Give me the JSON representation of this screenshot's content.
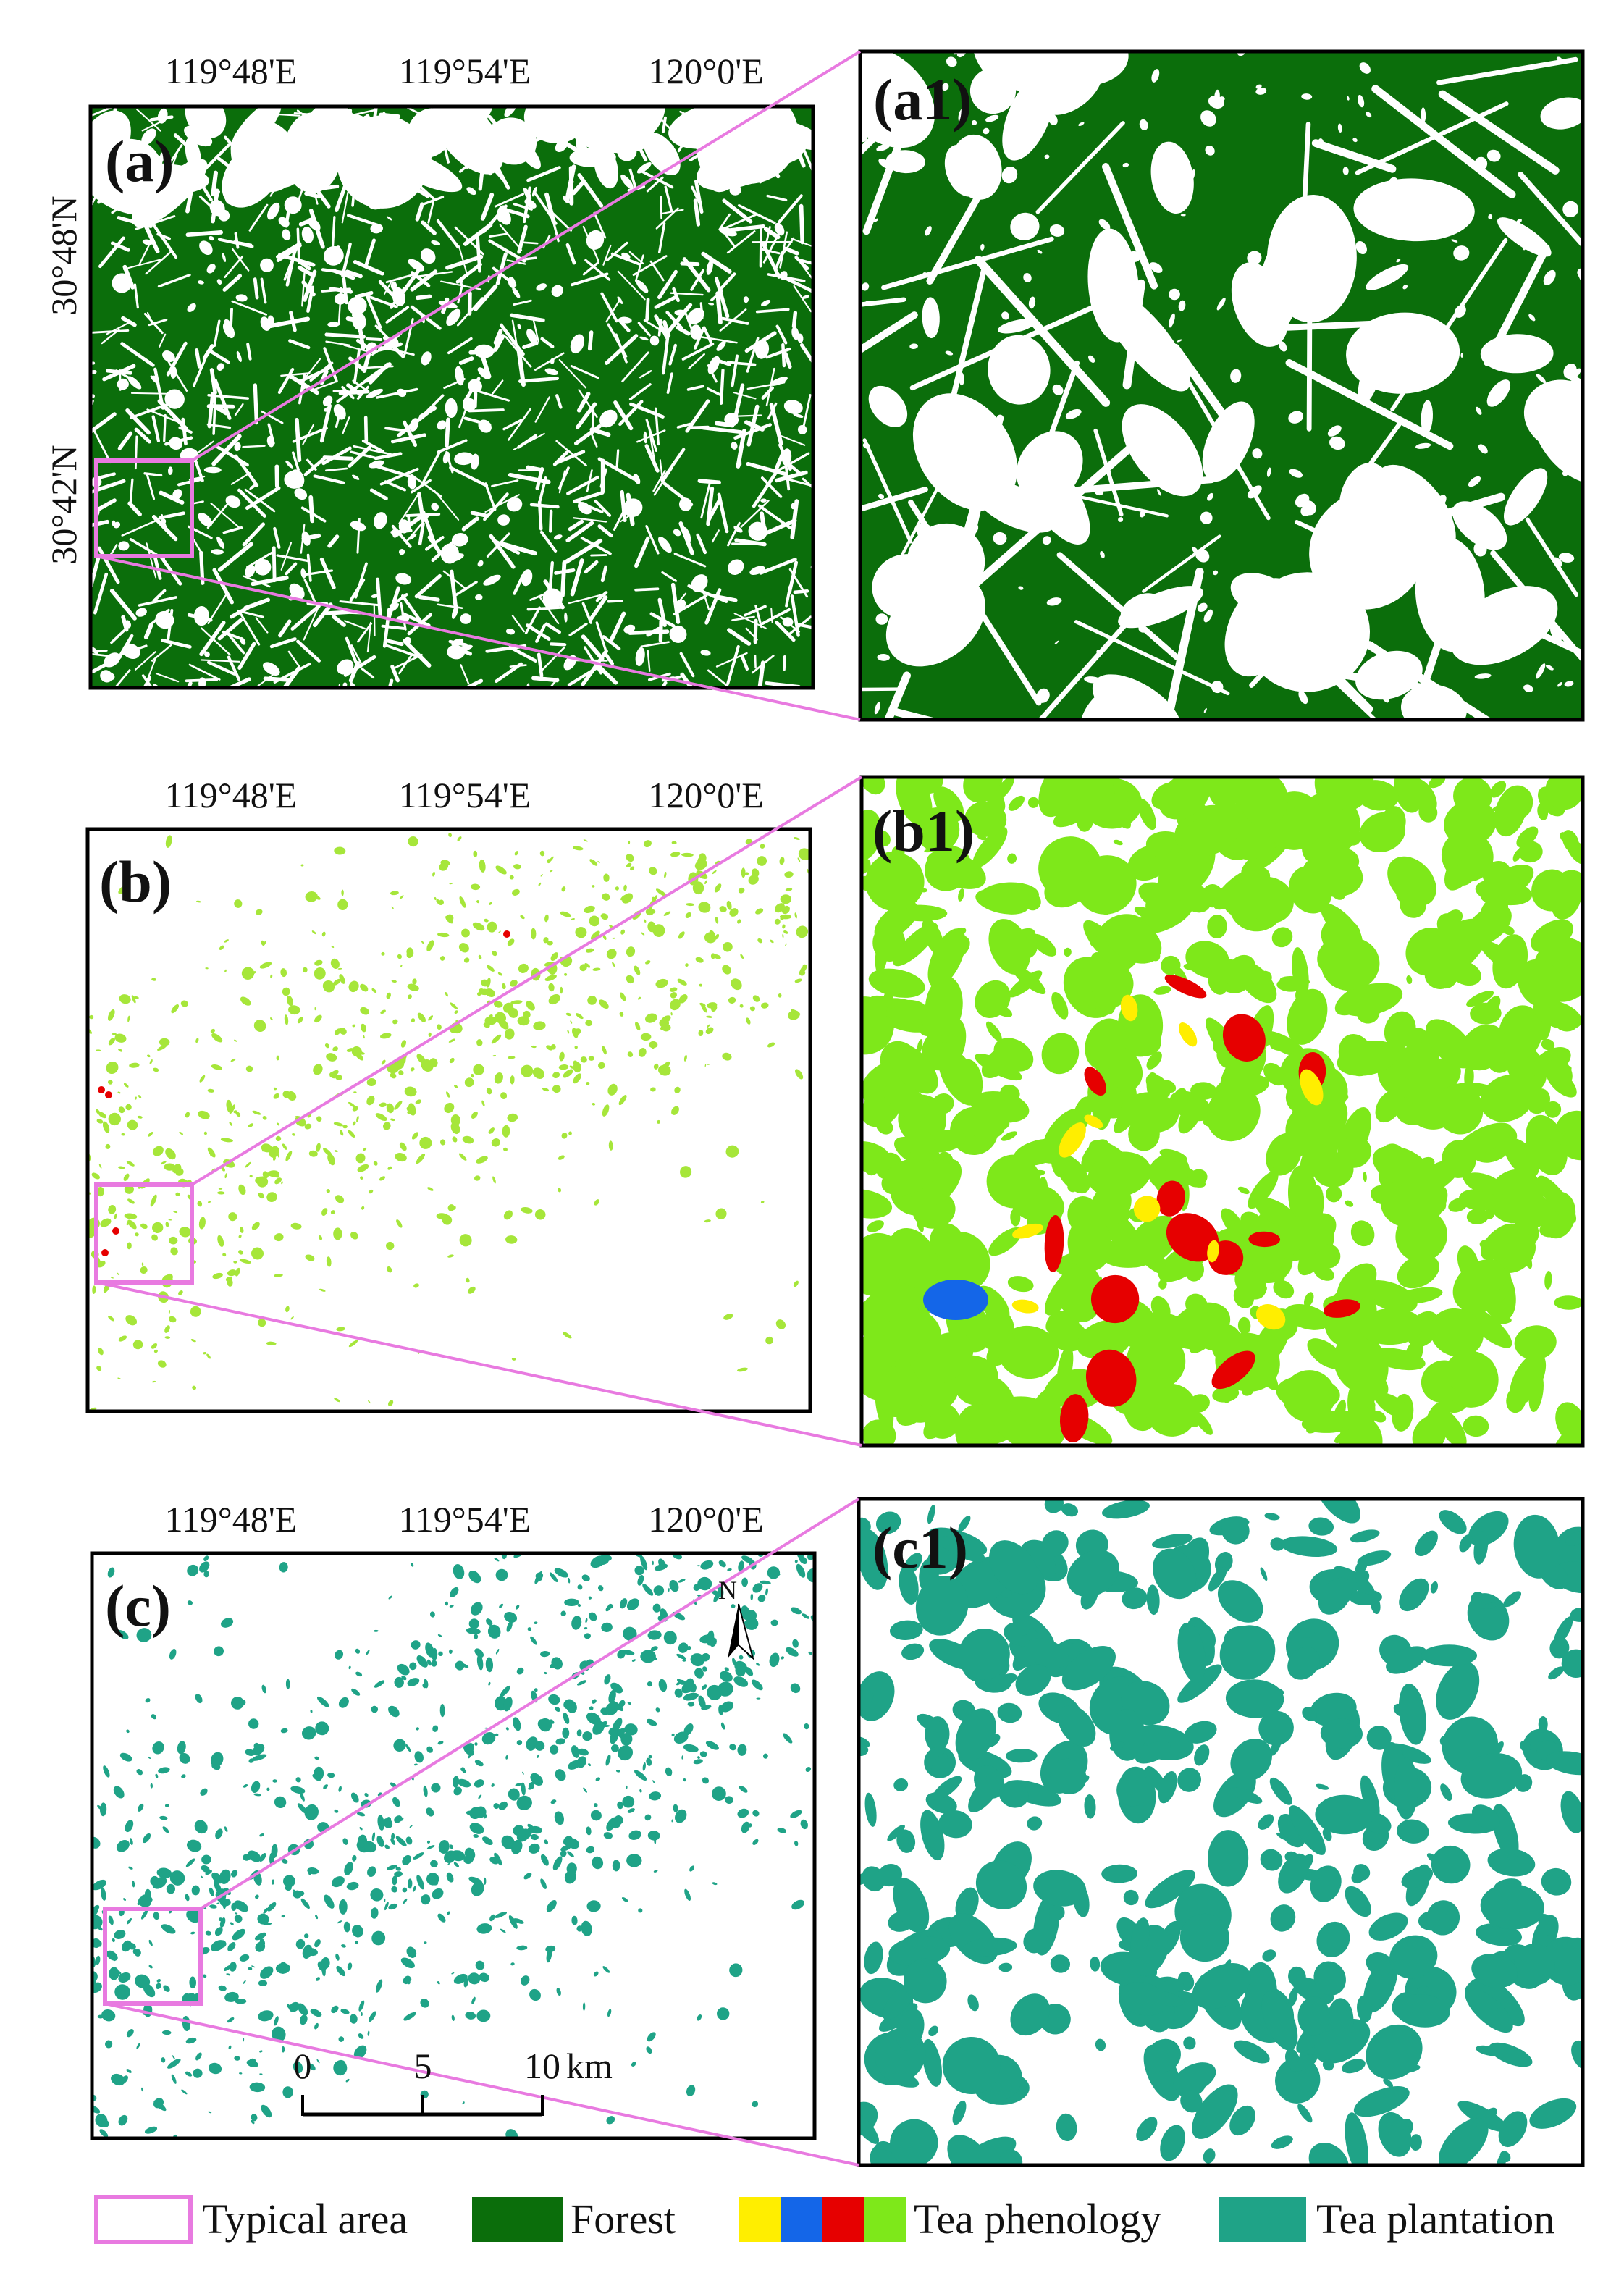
{
  "panels": [
    {
      "label": "(a)"
    },
    {
      "label": "(a1)"
    },
    {
      "label": "(b)"
    },
    {
      "label": "(b1)"
    },
    {
      "label": "(c)"
    },
    {
      "label": "(c1)"
    }
  ],
  "longitude_labels": [
    "119°48'E",
    "119°54'E",
    "120°0'E"
  ],
  "latitude_labels": [
    "30°48'N",
    "30°42'N"
  ],
  "scale_bar": {
    "labels": [
      "0",
      "5",
      "10"
    ],
    "unit": "km"
  },
  "north_arrow": "N",
  "legend": [
    "Typical area",
    "Forest",
    "Tea phenology",
    "Tea plantation"
  ]
}
